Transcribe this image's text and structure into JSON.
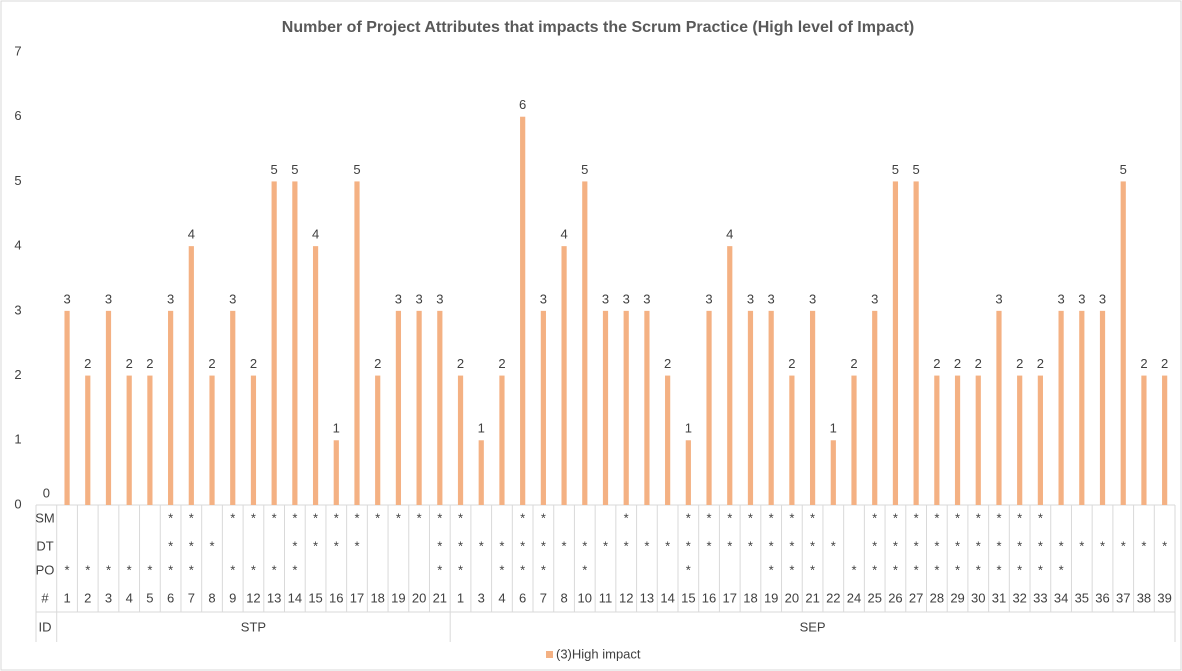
{
  "chart_data": {
    "type": "bar",
    "title": "Number of Project Attributes that impacts the Scrum Practice (High level of Impact)",
    "ylim": [
      0,
      7
    ],
    "yticks": [
      0,
      1,
      2,
      3,
      4,
      5,
      6,
      7
    ],
    "series": [
      {
        "name": "(3)High impact",
        "color": "#f4b183",
        "values": [
          0,
          3,
          2,
          3,
          2,
          2,
          3,
          4,
          2,
          3,
          2,
          5,
          5,
          4,
          1,
          5,
          2,
          3,
          3,
          3,
          2,
          1,
          2,
          6,
          3,
          4,
          5,
          3,
          3,
          3,
          2,
          1,
          3,
          4,
          3,
          3,
          2,
          3,
          1,
          2,
          3,
          5,
          5,
          2,
          2,
          2,
          3,
          2,
          2,
          3,
          3,
          3,
          5,
          2,
          2
        ]
      }
    ],
    "levels": [
      [
        "SM",
        null,
        null,
        null,
        null,
        null,
        "*",
        "*",
        null,
        "*",
        "*",
        "*",
        "*",
        "*",
        "*",
        "*",
        "*",
        "*",
        "*",
        "*",
        "*",
        null,
        null,
        "*",
        "*",
        null,
        null,
        null,
        "*",
        null,
        null,
        "*",
        "*",
        "*",
        "*",
        "*",
        "*",
        "*",
        null,
        null,
        "*",
        "*",
        "*",
        "*",
        "*",
        "*",
        "*",
        "*",
        "*",
        null,
        null,
        null,
        null,
        null,
        null
      ],
      [
        "DT",
        null,
        null,
        null,
        null,
        null,
        "*",
        "*",
        "*",
        null,
        null,
        null,
        "*",
        "*",
        "*",
        "*",
        null,
        null,
        null,
        "*",
        "*",
        "*",
        "*",
        "*",
        "*",
        "*",
        "*",
        "*",
        "*",
        "*",
        "*",
        "*",
        "*",
        "*",
        "*",
        "*",
        "*",
        "*",
        "*",
        null,
        "*",
        "*",
        "*",
        "*",
        "*",
        "*",
        "*",
        "*",
        "*",
        "*",
        "*",
        "*",
        "*",
        "*",
        "*"
      ],
      [
        "PO",
        "*",
        "*",
        "*",
        "*",
        "*",
        "*",
        "*",
        null,
        "*",
        "*",
        "*",
        "*",
        null,
        null,
        null,
        null,
        null,
        null,
        "*",
        "*",
        null,
        "*",
        "*",
        "*",
        null,
        "*",
        null,
        null,
        null,
        null,
        "*",
        null,
        null,
        null,
        "*",
        "*",
        "*",
        null,
        "*",
        "*",
        "*",
        "*",
        "*",
        "*",
        "*",
        "*",
        "*",
        "*",
        "*",
        null,
        null,
        null,
        null,
        null
      ]
    ],
    "categories": [
      "#",
      1,
      2,
      3,
      4,
      5,
      6,
      7,
      8,
      9,
      12,
      13,
      14,
      15,
      16,
      17,
      18,
      19,
      20,
      21,
      1,
      3,
      4,
      6,
      7,
      8,
      10,
      11,
      12,
      13,
      14,
      15,
      16,
      17,
      18,
      19,
      20,
      21,
      22,
      24,
      25,
      26,
      27,
      28,
      29,
      30,
      31,
      32,
      33,
      34,
      35,
      36,
      37,
      38,
      39
    ],
    "ids": [
      "ID",
      "STP",
      "STP",
      "STP",
      "STP",
      "STP",
      "STP",
      "STP",
      "STP",
      "STP",
      "STP",
      "STP",
      "STP",
      "STP",
      "STP",
      "STP",
      "STP",
      "STP",
      "STP",
      "STP",
      "SEP",
      "SEP",
      "SEP",
      "SEP",
      "SEP",
      "SEP",
      "SEP",
      "SEP",
      "SEP",
      "SEP",
      "SEP",
      "SEP",
      "SEP",
      "SEP",
      "SEP",
      "SEP",
      "SEP",
      "SEP",
      "SEP",
      "SEP",
      "SEP",
      "SEP",
      "SEP",
      "SEP",
      "SEP",
      "SEP",
      "SEP",
      "SEP",
      "SEP",
      "SEP",
      "SEP",
      "SEP",
      "SEP",
      "SEP",
      "SEP"
    ],
    "legend": "bottom"
  }
}
